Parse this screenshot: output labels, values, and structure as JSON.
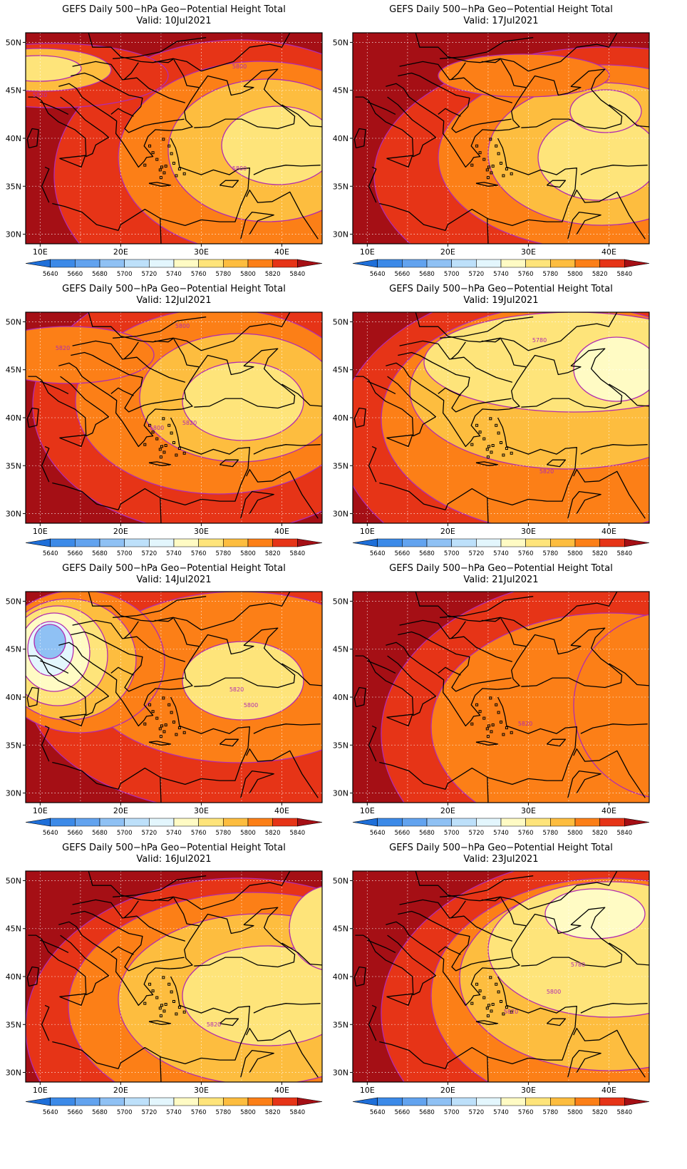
{
  "panels": [
    {
      "title": "GEFS Daily 500−hPa Geo−Potential Height Total",
      "valid": "Valid:  10Jul2021",
      "labels": [
        "5800",
        "5800",
        "5820"
      ]
    },
    {
      "title": "GEFS Daily 500−hPa Geo−Potential Height Total",
      "valid": "Valid:  17Jul2021",
      "labels": []
    },
    {
      "title": "GEFS Daily 500−hPa Geo−Potential Height Total",
      "valid": "Valid:  12Jul2021",
      "labels": [
        "5800",
        "5820",
        "5800",
        "5820"
      ]
    },
    {
      "title": "GEFS Daily 500−hPa Geo−Potential Height Total",
      "valid": "Valid:  19Jul2021",
      "labels": [
        "5780",
        "5820"
      ]
    },
    {
      "title": "GEFS Daily 500−hPa Geo−Potential Height Total",
      "valid": "Valid:  14Jul2021",
      "labels": [
        "5820",
        "5800"
      ]
    },
    {
      "title": "GEFS Daily 500−hPa Geo−Potential Height Total",
      "valid": "Valid:  21Jul2021",
      "labels": [
        "5820"
      ]
    },
    {
      "title": "GEFS Daily 500−hPa Geo−Potential Height Total",
      "valid": "Valid:  16Jul2021",
      "labels": [
        "5820"
      ]
    },
    {
      "title": "GEFS Daily 500−hPa Geo−Potential Height Total",
      "valid": "Valid:  23Jul2021",
      "labels": [
        "5780",
        "5800",
        "5820"
      ]
    }
  ],
  "lat_labels": [
    "50N",
    "45N",
    "40N",
    "35N",
    "30N"
  ],
  "lon_labels": [
    "10E",
    "20E",
    "30E",
    "40E"
  ],
  "colorbar": {
    "ticks": [
      "5640",
      "5660",
      "5680",
      "5700",
      "5720",
      "5740",
      "5760",
      "5780",
      "5800",
      "5820",
      "5840"
    ],
    "colors": [
      "#1e6fd9",
      "#3c8ae8",
      "#62a3ef",
      "#8fc1f4",
      "#bde0fa",
      "#e3f6fd",
      "#fffbc4",
      "#fee47a",
      "#fdbd3f",
      "#fc7f17",
      "#e63417",
      "#a50f15"
    ]
  },
  "contour_color": "#b22bb0"
}
